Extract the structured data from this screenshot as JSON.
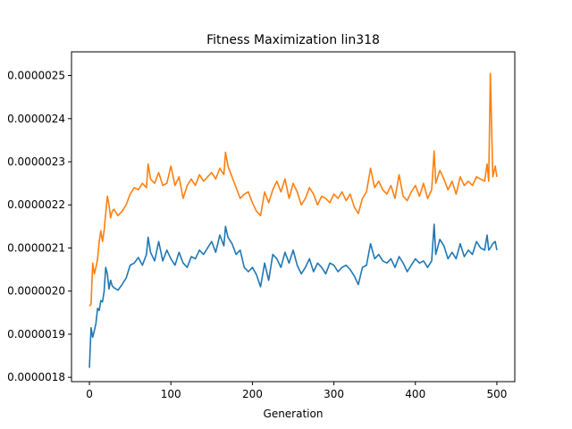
{
  "chart_data": {
    "type": "line",
    "title": "Fitness Maximization lin318",
    "xlabel": "Generation",
    "ylabel": "",
    "xlim": [
      -22,
      522
    ],
    "ylim": [
      1.79e-06,
      2.555e-06
    ],
    "x_ticks": [
      0,
      100,
      200,
      300,
      400,
      500
    ],
    "y_ticks": [
      1.8e-06,
      1.9e-06,
      2e-06,
      2.1e-06,
      2.2e-06,
      2.3e-06,
      2.4e-06,
      2.5e-06
    ],
    "y_tick_labels": [
      "0.0000018",
      "0.0000019",
      "0.0000020",
      "0.0000021",
      "0.0000022",
      "0.0000023",
      "0.0000024",
      "0.0000025"
    ],
    "grid": false,
    "legend": "none",
    "series": [
      {
        "color": "#1f77b4",
        "x": [
          0,
          2,
          4,
          6,
          8,
          10,
          12,
          14,
          16,
          18,
          20,
          22,
          24,
          26,
          28,
          30,
          35,
          40,
          45,
          50,
          55,
          60,
          65,
          70,
          72,
          75,
          80,
          85,
          90,
          95,
          100,
          105,
          110,
          115,
          120,
          125,
          130,
          135,
          140,
          145,
          150,
          155,
          160,
          165,
          167,
          170,
          175,
          180,
          185,
          190,
          195,
          200,
          205,
          210,
          215,
          220,
          225,
          230,
          235,
          240,
          245,
          250,
          255,
          260,
          265,
          270,
          275,
          280,
          285,
          290,
          295,
          300,
          305,
          310,
          315,
          320,
          325,
          330,
          335,
          340,
          345,
          350,
          355,
          360,
          365,
          370,
          375,
          380,
          385,
          390,
          395,
          400,
          405,
          410,
          415,
          420,
          423,
          425,
          430,
          435,
          440,
          445,
          450,
          455,
          460,
          465,
          470,
          475,
          480,
          485,
          488,
          490,
          492,
          495,
          498,
          500
        ],
        "y": [
          1.822e-06,
          1.915e-06,
          1.893e-06,
          1.908e-06,
          1.925e-06,
          1.96e-06,
          1.955e-06,
          1.978e-06,
          1.975e-06,
          1.999e-06,
          2.055e-06,
          2.04e-06,
          2.005e-06,
          2.025e-06,
          2.012e-06,
          2.008e-06,
          2.002e-06,
          2.015e-06,
          2.03e-06,
          2.06e-06,
          2.065e-06,
          2.078e-06,
          2.06e-06,
          2.085e-06,
          2.125e-06,
          2.09e-06,
          2.07e-06,
          2.115e-06,
          2.07e-06,
          2.095e-06,
          2.075e-06,
          2.06e-06,
          2.09e-06,
          2.065e-06,
          2.055e-06,
          2.08e-06,
          2.075e-06,
          2.095e-06,
          2.085e-06,
          2.1e-06,
          2.115e-06,
          2.09e-06,
          2.13e-06,
          2.105e-06,
          2.15e-06,
          2.125e-06,
          2.11e-06,
          2.085e-06,
          2.095e-06,
          2.055e-06,
          2.045e-06,
          2.055e-06,
          2.038e-06,
          2.01e-06,
          2.065e-06,
          2.025e-06,
          2.085e-06,
          2.075e-06,
          2.055e-06,
          2.09e-06,
          2.065e-06,
          2.095e-06,
          2.06e-06,
          2.04e-06,
          2.055e-06,
          2.075e-06,
          2.045e-06,
          2.065e-06,
          2.055e-06,
          2.04e-06,
          2.065e-06,
          2.06e-06,
          2.045e-06,
          2.055e-06,
          2.06e-06,
          2.05e-06,
          2.035e-06,
          2.015e-06,
          2.055e-06,
          2.06e-06,
          2.11e-06,
          2.075e-06,
          2.085e-06,
          2.07e-06,
          2.065e-06,
          2.075e-06,
          2.055e-06,
          2.08e-06,
          2.065e-06,
          2.045e-06,
          2.06e-06,
          2.075e-06,
          2.065e-06,
          2.07e-06,
          2.055e-06,
          2.07e-06,
          2.155e-06,
          2.085e-06,
          2.12e-06,
          2.105e-06,
          2.075e-06,
          2.09e-06,
          2.075e-06,
          2.11e-06,
          2.08e-06,
          2.095e-06,
          2.085e-06,
          2.115e-06,
          2.1e-06,
          2.095e-06,
          2.13e-06,
          2.095e-06,
          2.1e-06,
          2.11e-06,
          2.115e-06,
          2.095e-06
        ]
      },
      {
        "color": "#ff7f0e",
        "x": [
          0,
          2,
          4,
          6,
          8,
          10,
          12,
          14,
          16,
          18,
          20,
          22,
          24,
          26,
          28,
          30,
          35,
          40,
          45,
          50,
          55,
          60,
          65,
          70,
          72,
          75,
          80,
          85,
          90,
          95,
          100,
          105,
          110,
          115,
          120,
          125,
          130,
          135,
          140,
          145,
          150,
          155,
          160,
          165,
          167,
          170,
          175,
          180,
          185,
          190,
          195,
          200,
          205,
          210,
          215,
          220,
          225,
          230,
          235,
          240,
          245,
          250,
          255,
          260,
          265,
          270,
          275,
          280,
          285,
          290,
          295,
          300,
          305,
          310,
          315,
          320,
          325,
          330,
          335,
          340,
          345,
          350,
          355,
          360,
          365,
          370,
          375,
          380,
          385,
          390,
          395,
          400,
          405,
          410,
          415,
          420,
          423,
          425,
          430,
          435,
          440,
          445,
          450,
          455,
          460,
          465,
          470,
          475,
          480,
          485,
          488,
          490,
          492,
          495,
          498,
          500
        ],
        "y": [
          1.965e-06,
          1.97e-06,
          2.065e-06,
          2.04e-06,
          2.055e-06,
          2.075e-06,
          2.115e-06,
          2.14e-06,
          2.115e-06,
          2.14e-06,
          2.18e-06,
          2.22e-06,
          2.2e-06,
          2.17e-06,
          2.185e-06,
          2.19e-06,
          2.175e-06,
          2.185e-06,
          2.2e-06,
          2.225e-06,
          2.24e-06,
          2.235e-06,
          2.25e-06,
          2.24e-06,
          2.295e-06,
          2.26e-06,
          2.25e-06,
          2.275e-06,
          2.245e-06,
          2.25e-06,
          2.29e-06,
          2.245e-06,
          2.265e-06,
          2.215e-06,
          2.245e-06,
          2.26e-06,
          2.245e-06,
          2.27e-06,
          2.255e-06,
          2.265e-06,
          2.275e-06,
          2.26e-06,
          2.285e-06,
          2.27e-06,
          2.322e-06,
          2.29e-06,
          2.265e-06,
          2.24e-06,
          2.215e-06,
          2.225e-06,
          2.23e-06,
          2.205e-06,
          2.185e-06,
          2.175e-06,
          2.23e-06,
          2.205e-06,
          2.235e-06,
          2.255e-06,
          2.23e-06,
          2.26e-06,
          2.215e-06,
          2.25e-06,
          2.23e-06,
          2.2e-06,
          2.215e-06,
          2.24e-06,
          2.225e-06,
          2.2e-06,
          2.22e-06,
          2.215e-06,
          2.205e-06,
          2.225e-06,
          2.215e-06,
          2.23e-06,
          2.21e-06,
          2.225e-06,
          2.195e-06,
          2.18e-06,
          2.215e-06,
          2.23e-06,
          2.285e-06,
          2.24e-06,
          2.255e-06,
          2.235e-06,
          2.225e-06,
          2.245e-06,
          2.215e-06,
          2.27e-06,
          2.22e-06,
          2.21e-06,
          2.23e-06,
          2.245e-06,
          2.22e-06,
          2.25e-06,
          2.215e-06,
          2.235e-06,
          2.325e-06,
          2.25e-06,
          2.28e-06,
          2.26e-06,
          2.235e-06,
          2.255e-06,
          2.225e-06,
          2.265e-06,
          2.245e-06,
          2.255e-06,
          2.245e-06,
          2.265e-06,
          2.26e-06,
          2.255e-06,
          2.295e-06,
          2.255e-06,
          2.505e-06,
          2.265e-06,
          2.29e-06,
          2.265e-06
        ]
      }
    ]
  }
}
